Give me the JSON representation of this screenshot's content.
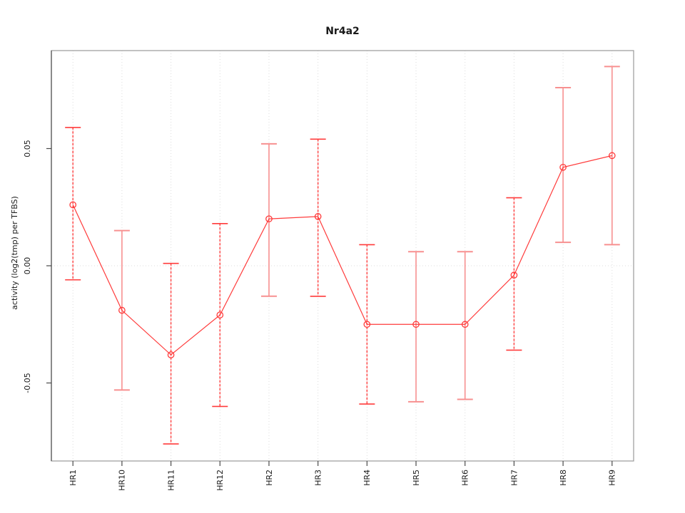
{
  "window": {
    "background": "#ffffff"
  },
  "chart_data": {
    "type": "line",
    "title": "Nr4a2",
    "xlabel": "",
    "ylabel": "activity (log2(tmp) per TFBS)",
    "legend_position": "none",
    "categories": [
      "HR1",
      "HR10",
      "HR11",
      "HR12",
      "HR2",
      "HR3",
      "HR4",
      "HR5",
      "HR6",
      "HR7",
      "HR8",
      "HR9"
    ],
    "series": [
      {
        "name": "activity",
        "values": [
          0.026,
          -0.019,
          -0.038,
          -0.021,
          0.02,
          0.021,
          -0.025,
          -0.025,
          -0.025,
          -0.004,
          0.042,
          0.047
        ],
        "ci_low": [
          -0.006,
          -0.053,
          -0.076,
          -0.06,
          -0.013,
          -0.013,
          -0.059,
          -0.058,
          -0.057,
          -0.036,
          0.01,
          0.009
        ],
        "ci_high": [
          0.059,
          0.015,
          0.001,
          0.018,
          0.052,
          0.054,
          0.009,
          0.006,
          0.006,
          0.029,
          0.076,
          0.085
        ]
      }
    ],
    "error_bar_styles": [
      "dashed",
      "solid",
      "dashed",
      "dashed",
      "solid",
      "dashed",
      "dashed",
      "solid",
      "solid",
      "dashed",
      "solid",
      "solid"
    ],
    "marker": "open-circle",
    "yticks": [
      {
        "value": -0.05,
        "label": "-0.05"
      },
      {
        "value": 0.0,
        "label": "0.00"
      },
      {
        "value": 0.05,
        "label": "0.05"
      }
    ],
    "ylim": [
      -0.083,
      0.092
    ],
    "grid": {
      "vertical_dotted_per_category": true,
      "zero_line_dotted": true
    },
    "colors": {
      "line": "#ff3b3b",
      "point": "#ff3b3b",
      "error_bar_dashed": "#ff3b3b",
      "error_bar_solid": "#f79090",
      "gridline": "#dcdcdc",
      "zero_line": "#dcdcdc",
      "box": "#9a9a9a",
      "axis": "#4a4a4a",
      "text": "#1a1a1a",
      "background": "#ffffff"
    }
  }
}
